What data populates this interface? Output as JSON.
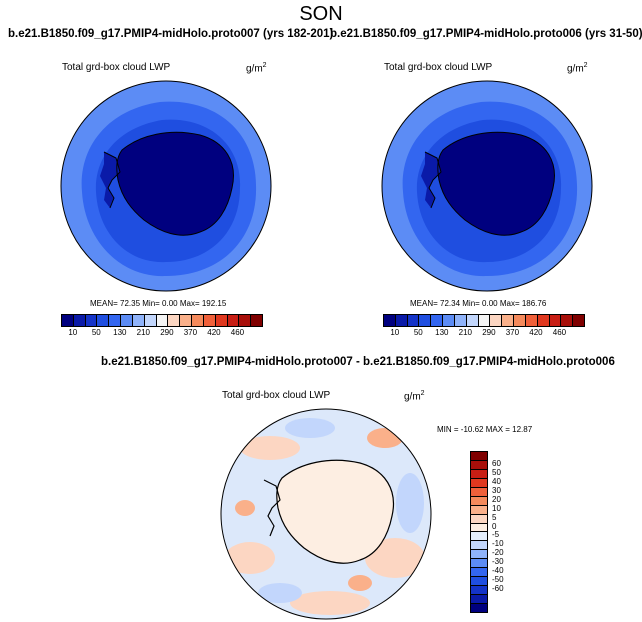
{
  "season": "SON",
  "panels": [
    {
      "case": "b.e21.B1850.f09_g17.PMIP4-midHolo.proto007 (yrs 182-201)",
      "variable": "Total grd-box cloud LWP",
      "units": "g/m",
      "units_exp": "2",
      "stats": "MEAN=  72.35  Min=   0.00  Max= 192.15"
    },
    {
      "case": "b.e21.B1850.f09_g17.PMIP4-midHolo.proto006 (yrs 31-50)",
      "variable": "Total grd-box cloud LWP",
      "units": "g/m",
      "units_exp": "2",
      "stats": "MEAN=  72.34  Min=   0.00  Max= 186.76"
    }
  ],
  "diff": {
    "title": "b.e21.B1850.f09_g17.PMIP4-midHolo.proto007 - b.e21.B1850.f09_g17.PMIP4-midHolo.proto006",
    "variable": "Total grd-box cloud LWP",
    "units": "g/m",
    "units_exp": "2",
    "stats": "MIN = -10.62 MAX =  12.87"
  },
  "abs_colorbar": {
    "colors": [
      "#00007f",
      "#0a1aa8",
      "#1433c8",
      "#1f4ee0",
      "#3366f0",
      "#5c8cf5",
      "#8fb3fa",
      "#c2d6fc",
      "#f4f4f4",
      "#fcd6c2",
      "#fab08a",
      "#f58a5c",
      "#f0603a",
      "#e0381f",
      "#c81e14",
      "#a80f0a",
      "#7f0000"
    ],
    "ticks": [
      "10",
      "50",
      "130",
      "210",
      "290",
      "370",
      "420",
      "460"
    ]
  },
  "diff_colorbar": {
    "colors": [
      "#7f0000",
      "#a80f0a",
      "#c81e14",
      "#e0381f",
      "#f0603a",
      "#f58a5c",
      "#fab08a",
      "#fcd6c2",
      "#fdeee2",
      "#e4eefc",
      "#c2d6fc",
      "#8fb3fa",
      "#5c8cf5",
      "#3366f0",
      "#1f4ee0",
      "#1433c8",
      "#0a1aa8",
      "#00007f"
    ],
    "ticks": [
      "60",
      "50",
      "40",
      "30",
      "20",
      "10",
      "5",
      "0",
      "-5",
      "-10",
      "-20",
      "-30",
      "-40",
      "-50",
      "-60"
    ]
  },
  "map_colors": {
    "ocean_outer": "#5c8cf5",
    "ocean_mid": "#3366f0",
    "ocean_inner": "#1433c8",
    "antarctica": "#00007f",
    "diff_base": "#dce8fa",
    "diff_warm": "#fcd6c2",
    "diff_warm2": "#fab08a",
    "diff_cool": "#c2d6fc"
  }
}
